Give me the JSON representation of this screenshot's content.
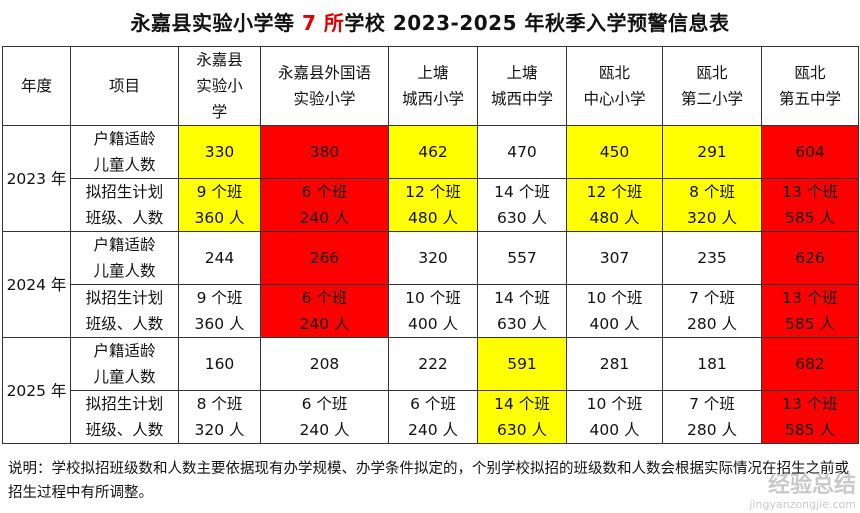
{
  "title": {
    "prefix": "永嘉县实验小学等 ",
    "number": "7 所",
    "suffix": "学校 2023-2025 年秋季入学预警信息表"
  },
  "header": [
    "年度",
    "项目",
    "永嘉县\n实验小\n学",
    "永嘉县外国语\n实验小学",
    "上塘\n城西小学",
    "上塘\n城西中学",
    "瓯北\n中心小学",
    "瓯北\n第二小学",
    "瓯北\n第五中学"
  ],
  "years": [
    {
      "label": "2023 年",
      "rows": [
        {
          "item": "户籍适龄\n儿童人数",
          "cells": [
            "330",
            "380",
            "462",
            "470",
            "450",
            "291",
            "604"
          ],
          "colors": [
            "y",
            "red",
            "y",
            "",
            "y",
            "y",
            "red"
          ]
        },
        {
          "item": "拟招生计划\n班级、人数",
          "cells": [
            "9 个班\n360 人",
            "6 个班\n240 人",
            "12 个班\n480 人",
            "14 个班\n630 人",
            "12 个班\n480 人",
            "8 个班\n320 人",
            "13 个班\n585 人"
          ],
          "colors": [
            "y",
            "red",
            "y",
            "",
            "y",
            "y",
            "red"
          ]
        }
      ]
    },
    {
      "label": "2024 年",
      "rows": [
        {
          "item": "户籍适龄\n儿童人数",
          "cells": [
            "244",
            "266",
            "320",
            "557",
            "307",
            "235",
            "626"
          ],
          "colors": [
            "",
            "red",
            "",
            "",
            "",
            "",
            "red"
          ]
        },
        {
          "item": "拟招生计划\n班级、人数",
          "cells": [
            "9 个班\n360 人",
            "6 个班\n240 人",
            "10 个班\n400 人",
            "14 个班\n630 人",
            "10 个班\n400 人",
            "7 个班\n280 人",
            "13 个班\n585 人"
          ],
          "colors": [
            "",
            "red",
            "",
            "",
            "",
            "",
            "red"
          ]
        }
      ]
    },
    {
      "label": "2025 年",
      "rows": [
        {
          "item": "户籍适龄\n儿童人数",
          "cells": [
            "160",
            "208",
            "222",
            "591",
            "281",
            "181",
            "682"
          ],
          "colors": [
            "",
            "",
            "",
            "y",
            "",
            "",
            "red"
          ]
        },
        {
          "item": "拟招生计划\n班级、人数",
          "cells": [
            "8 个班\n320 人",
            "6 个班\n240 人",
            "6 个班\n240 人",
            "14 个班\n630 人",
            "10 个班\n400 人",
            "7 个班\n280 人",
            "13 个班\n585 人"
          ],
          "colors": [
            "",
            "",
            "",
            "y",
            "",
            "",
            "red"
          ]
        }
      ]
    }
  ],
  "note": "说明：学校拟招班级数和人数主要依据现有办学规模、办学条件拟定的，个别学校拟招的班级数和人数会根据实际情况在招生之前或招生过程中有所调整。",
  "watermark": {
    "text": "经验总结",
    "url": "jingyanzongjie.com"
  }
}
